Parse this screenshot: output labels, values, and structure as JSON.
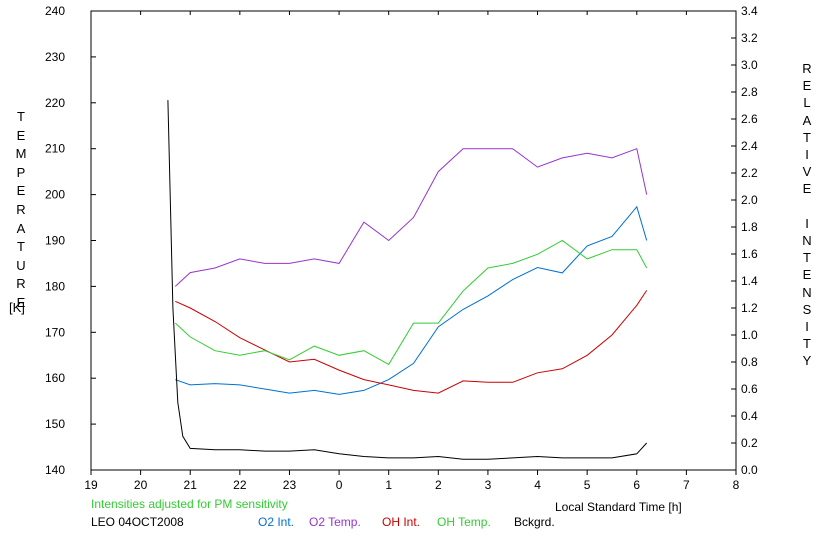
{
  "chart_data": {
    "type": "line",
    "left_axis_label": "TEMPERATURE",
    "left_axis_unit": "[K]",
    "right_axis_label": "RELATIVE INTENSITY",
    "xlabel": "Local Standard Time [h]",
    "note": "Intensities adjusted for PM sensitivity",
    "station": "LEO 04OCT2008",
    "xlim": [
      19,
      32
    ],
    "ylim_left": [
      140,
      240
    ],
    "ylim_right": [
      0.0,
      3.4
    ],
    "x_tick_labels": [
      "19",
      "20",
      "21",
      "22",
      "23",
      "0",
      "1",
      "2",
      "3",
      "4",
      "5",
      "6",
      "7",
      "8"
    ],
    "y_left_tick_labels": [
      "140",
      "150",
      "160",
      "170",
      "180",
      "190",
      "200",
      "210",
      "220",
      "230",
      "240"
    ],
    "y_right_tick_labels": [
      "0.0",
      "0.2",
      "0.4",
      "0.6",
      "0.8",
      "1.0",
      "1.2",
      "1.4",
      "1.6",
      "1.8",
      "2.0",
      "2.2",
      "2.4",
      "2.6",
      "2.8",
      "3.0",
      "3.2",
      "3.4"
    ],
    "grid": false,
    "legend_position": "bottom",
    "series": [
      {
        "name": "O2 Int.",
        "color": "#0070d0",
        "axis": "right",
        "x": [
          20.7,
          21.0,
          21.5,
          22.0,
          22.5,
          23.0,
          23.5,
          24.0,
          24.5,
          25.0,
          25.5,
          26.0,
          26.5,
          27.0,
          27.5,
          28.0,
          28.5,
          29.0,
          29.5,
          30.0,
          30.2
        ],
        "y": [
          0.67,
          0.63,
          0.64,
          0.63,
          0.6,
          0.57,
          0.59,
          0.56,
          0.59,
          0.67,
          0.79,
          1.06,
          1.19,
          1.29,
          1.41,
          1.5,
          1.46,
          1.66,
          1.73,
          1.95,
          1.7
        ]
      },
      {
        "name": "O2 Temp.",
        "color": "#9933cc",
        "axis": "left",
        "x": [
          20.7,
          21.0,
          21.5,
          22.0,
          22.5,
          23.0,
          23.5,
          24.0,
          24.5,
          25.0,
          25.5,
          26.0,
          26.5,
          27.0,
          27.5,
          28.0,
          28.5,
          29.0,
          29.5,
          30.0,
          30.2
        ],
        "y": [
          180,
          183,
          184,
          186,
          185,
          185,
          186,
          185,
          194,
          190,
          195,
          205,
          210,
          210,
          210,
          206,
          208,
          209,
          208,
          210,
          200
        ]
      },
      {
        "name": "OH Int.",
        "color": "#cc0000",
        "axis": "right",
        "x": [
          20.7,
          21.0,
          21.5,
          22.0,
          22.5,
          23.0,
          23.5,
          24.0,
          24.5,
          25.0,
          25.5,
          26.0,
          26.5,
          27.0,
          27.5,
          28.0,
          28.5,
          29.0,
          29.5,
          30.0,
          30.2
        ],
        "y": [
          1.25,
          1.2,
          1.1,
          0.98,
          0.89,
          0.8,
          0.82,
          0.74,
          0.67,
          0.63,
          0.59,
          0.57,
          0.66,
          0.65,
          0.65,
          0.72,
          0.75,
          0.85,
          1.0,
          1.22,
          1.33
        ]
      },
      {
        "name": "OH Temp.",
        "color": "#33cc33",
        "axis": "left",
        "x": [
          20.7,
          21.0,
          21.5,
          22.0,
          22.5,
          23.0,
          23.5,
          24.0,
          24.5,
          25.0,
          25.5,
          26.0,
          26.5,
          27.0,
          27.5,
          28.0,
          28.5,
          29.0,
          29.5,
          30.0,
          30.2
        ],
        "y": [
          172,
          169,
          166,
          165,
          166,
          164,
          167,
          165,
          166,
          163,
          172,
          172,
          179,
          184,
          185,
          187,
          190,
          186,
          188,
          188,
          184
        ]
      },
      {
        "name": "Bckgrd.",
        "color": "#000000",
        "axis": "right",
        "x": [
          20.55,
          20.65,
          20.75,
          20.85,
          21.0,
          21.5,
          22.0,
          22.5,
          23.0,
          23.5,
          24.0,
          24.5,
          25.0,
          25.5,
          26.0,
          26.5,
          27.0,
          27.5,
          28.0,
          28.5,
          29.0,
          29.5,
          30.0,
          30.2
        ],
        "y": [
          2.74,
          1.2,
          0.5,
          0.25,
          0.16,
          0.15,
          0.15,
          0.14,
          0.14,
          0.15,
          0.12,
          0.1,
          0.09,
          0.09,
          0.1,
          0.08,
          0.08,
          0.09,
          0.1,
          0.09,
          0.09,
          0.09,
          0.12,
          0.2
        ]
      }
    ]
  }
}
